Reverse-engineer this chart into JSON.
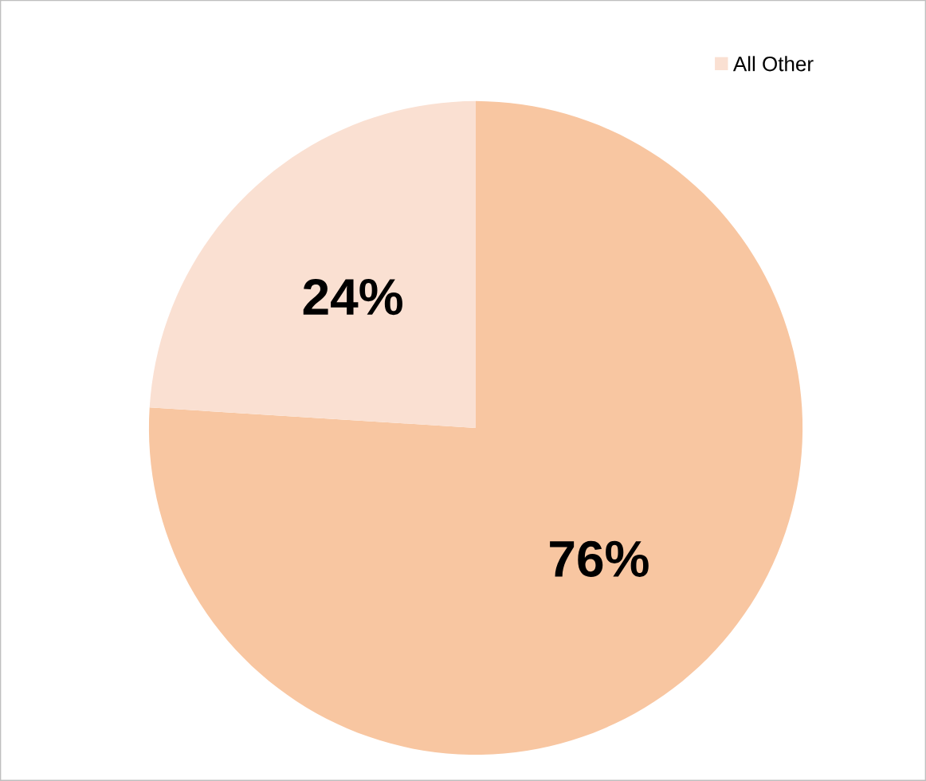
{
  "chart_data": {
    "type": "pie",
    "categories": [
      null,
      "All Other"
    ],
    "values": [
      76,
      24
    ],
    "colors": [
      "#f8c6a1",
      "#fae0d2"
    ],
    "value_labels": [
      "76%",
      "24%"
    ],
    "legend": "top"
  }
}
